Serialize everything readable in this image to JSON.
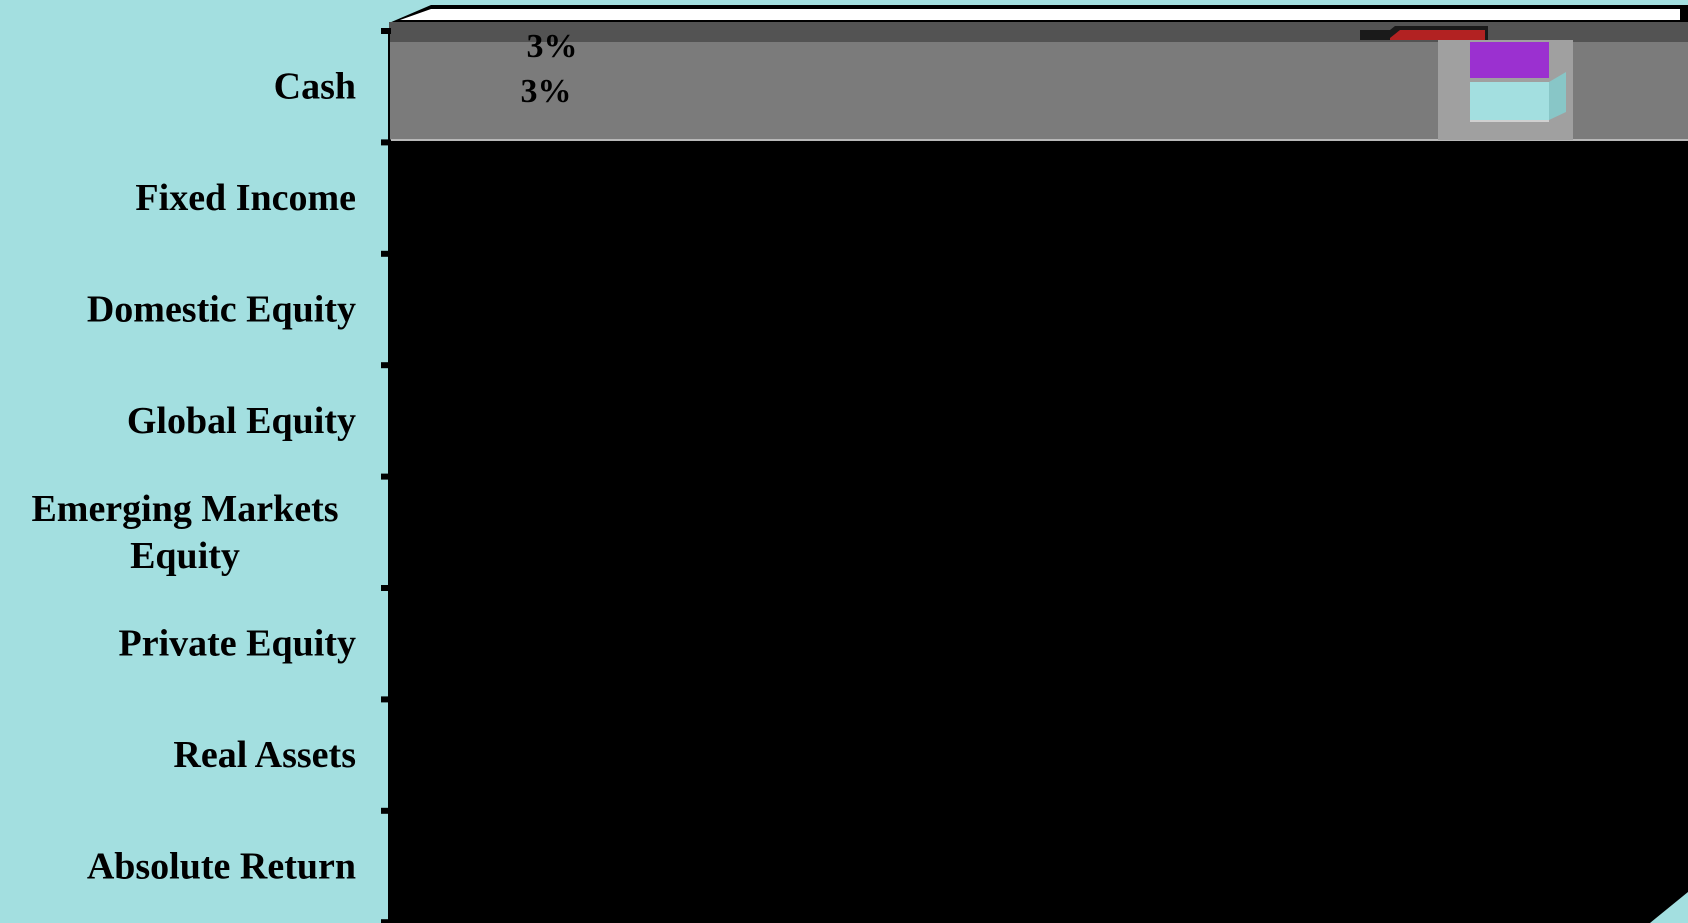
{
  "chart_data": {
    "type": "bar",
    "orientation": "horizontal",
    "categories": [
      "Cash",
      "Fixed Income",
      "Domestic Equity",
      "Global Equity",
      "Emerging Markets Equity",
      "Private Equity",
      "Real Assets",
      "Absolute Return"
    ],
    "category_lines": [
      [
        "Cash"
      ],
      [
        "Fixed Income"
      ],
      [
        "Domestic Equity"
      ],
      [
        "Global Equity"
      ],
      [
        "Emerging Markets",
        "Equity"
      ],
      [
        "Private Equity"
      ],
      [
        "Real Assets"
      ],
      [
        "Absolute Return"
      ]
    ],
    "series": [
      {
        "values": [
          3,
          null,
          null,
          null,
          null,
          null,
          null,
          null
        ],
        "color": "#7f3f98"
      },
      {
        "values": [
          3,
          null,
          null,
          null,
          null,
          null,
          null,
          null
        ],
        "color": "#9e2a2b"
      }
    ],
    "data_labels": [
      "3%",
      "3%"
    ],
    "colors": {
      "background": "#a3dfe0",
      "plot_area": "#000000",
      "cash_band": "#7b7b7b",
      "legend_purple": "#9b30d0",
      "legend_cyan": "#a3dfe0",
      "legend_red": "#b22222"
    },
    "legend_placement": "top-right",
    "grid": false
  }
}
